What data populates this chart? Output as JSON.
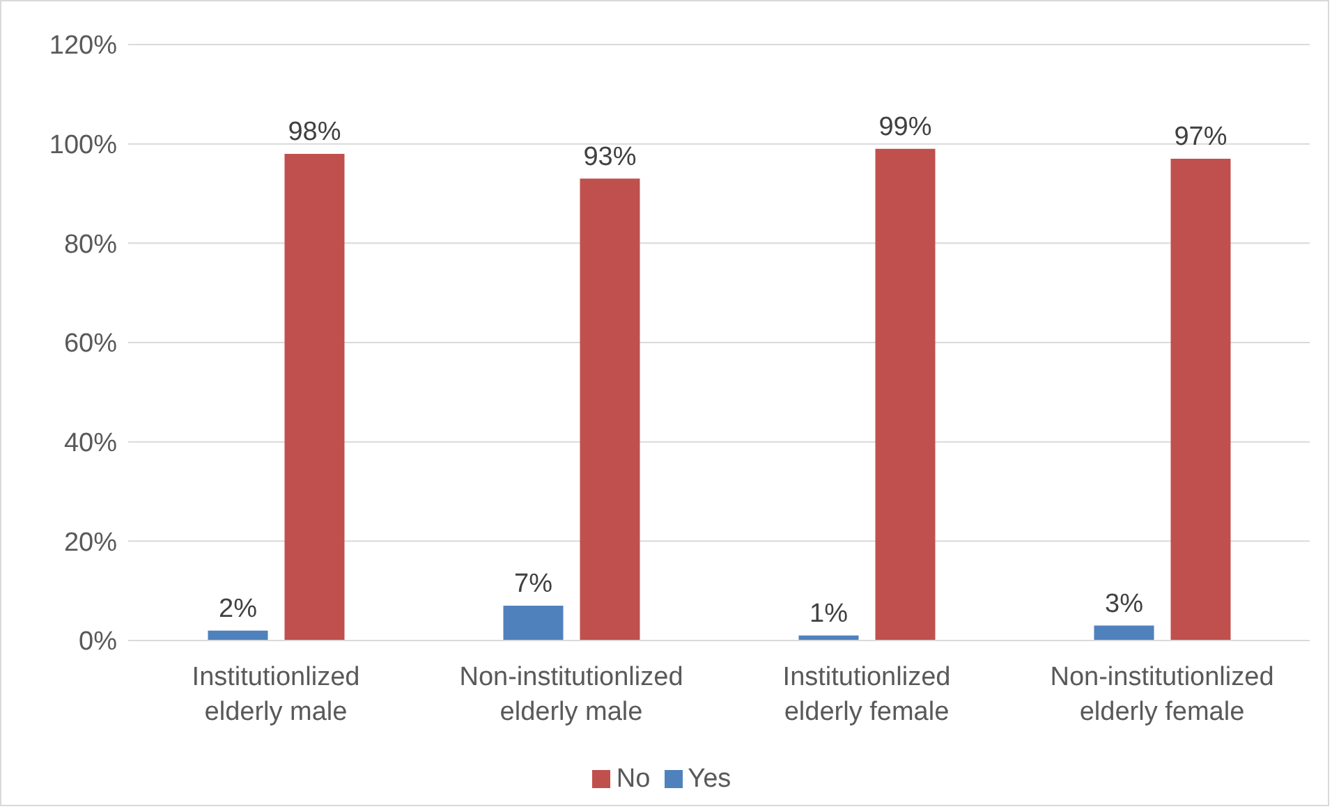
{
  "chart_data": {
    "type": "bar",
    "categories": [
      "Institutionlized elderly male",
      "Non-institutionlized elderly male",
      "Institutionlized elderly female",
      "Non-institutionlized elderly female"
    ],
    "series": [
      {
        "name": "Yes",
        "color": "#4f81bd",
        "values": [
          2,
          7,
          1,
          3
        ],
        "value_labels": [
          "2%",
          "7%",
          "1%",
          "3%"
        ]
      },
      {
        "name": "No",
        "color": "#c0504d",
        "values": [
          98,
          93,
          99,
          97
        ],
        "value_labels": [
          "98%",
          "93%",
          "99%",
          "97%"
        ]
      }
    ],
    "ylim": [
      0,
      120
    ],
    "yticks": [
      {
        "value": 0,
        "label": "0%"
      },
      {
        "value": 20,
        "label": "20%"
      },
      {
        "value": 40,
        "label": "40%"
      },
      {
        "value": 60,
        "label": "60%"
      },
      {
        "value": 80,
        "label": "80%"
      },
      {
        "value": 100,
        "label": "100%"
      },
      {
        "value": 120,
        "label": "120%"
      }
    ],
    "grid": "y",
    "legend": "bottom"
  }
}
